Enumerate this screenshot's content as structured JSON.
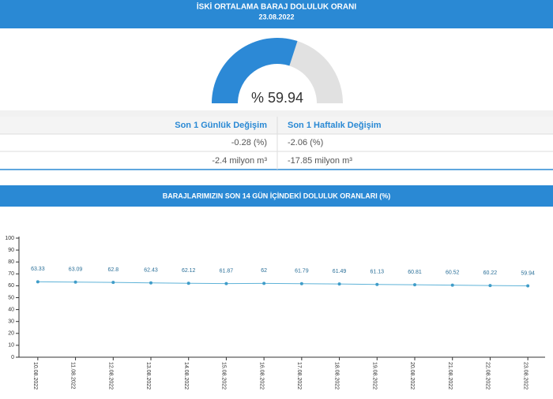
{
  "header": {
    "title": "İSKİ ORTALAMA BARAJ DOLULUK ORANI",
    "date": "23.08.2022"
  },
  "gauge": {
    "value": 59.94,
    "label": "% 59.94"
  },
  "table": {
    "columns": [
      "Son 1 Günlük Değişim",
      "Son 1 Haftalık Değişim"
    ],
    "rows": [
      [
        "-0.28 (%)",
        "-2.06 (%)"
      ],
      [
        "-2.4 milyon m³",
        "-17.85 milyon m³"
      ]
    ]
  },
  "chart_data": {
    "type": "line",
    "title": "BARAJLARIMIZIN SON 14 GÜN İÇİNDEKİ DOLULUK ORANLARI (%)",
    "categories": [
      "10.08.2022",
      "11.08.2022",
      "12.08.2022",
      "13.08.2022",
      "14.08.2022",
      "15.08.2022",
      "16.08.2022",
      "17.08.2022",
      "18.08.2022",
      "19.08.2022",
      "20.08.2022",
      "21.08.2022",
      "22.08.2022",
      "23.08.2022"
    ],
    "values": [
      63.33,
      63.09,
      62.8,
      62.43,
      62.12,
      61.87,
      62,
      61.79,
      61.49,
      61.13,
      60.81,
      60.52,
      60.22,
      59.94
    ],
    "color": "#5fb3d8",
    "ylim": [
      0,
      100
    ],
    "yticks": [
      0,
      10,
      20,
      30,
      40,
      50,
      60,
      70,
      80,
      90,
      100
    ]
  }
}
